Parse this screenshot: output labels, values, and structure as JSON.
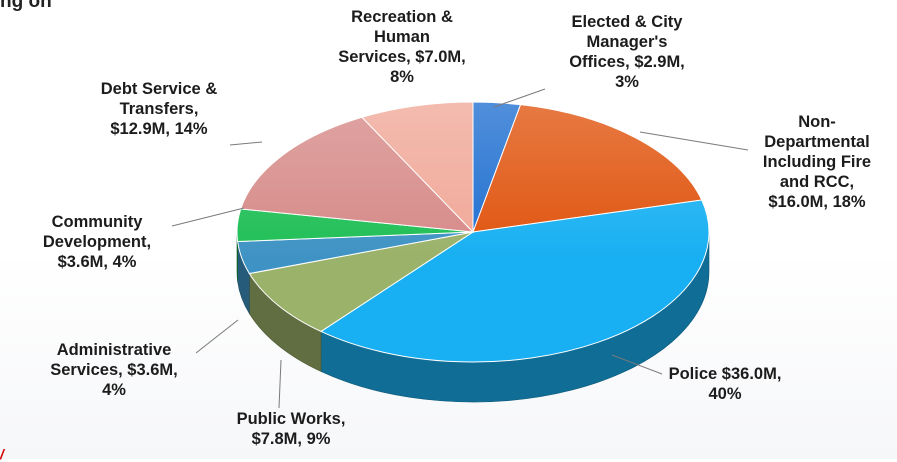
{
  "top_fragment": "ng on",
  "bottom_mark": "/",
  "chart_data": {
    "type": "pie",
    "title": "",
    "style": "3d",
    "slices": [
      {
        "name": "Elected & City Manager's Offices",
        "value": 2.9,
        "percent": 3,
        "label": "Elected & City\nManager's\nOffices, $2.9M,\n3%",
        "color": "#1f6fd0"
      },
      {
        "name": "Non-Departmental Including Fire and RCC",
        "value": 16.0,
        "percent": 18,
        "label": "Non-\nDepartmental\nIncluding Fire\nand RCC,\n$16.0M, 18%",
        "color": "#e0540e"
      },
      {
        "name": "Police",
        "value": 36.0,
        "percent": 40,
        "label": "Police   $36.0M,\n40%",
        "color": "#18b0f2"
      },
      {
        "name": "Public Works",
        "value": 7.8,
        "percent": 9,
        "label": "Public Works,\n$7.8M, 9%",
        "color": "#9bb26a"
      },
      {
        "name": "Administrative Services",
        "value": 3.6,
        "percent": 4,
        "label": "Administrative\nServices, $3.6M,\n4%",
        "color": "#3f93c4"
      },
      {
        "name": "Community Development",
        "value": 3.6,
        "percent": 4,
        "label": "Community\nDevelopment,\n$3.6M, 4%",
        "color": "#1fbf56"
      },
      {
        "name": "Debt Service & Transfers",
        "value": 12.9,
        "percent": 14,
        "label": "Debt Service &\nTransfers,\n$12.9M, 14%",
        "color": "#d68a88"
      },
      {
        "name": "Recreation & Human Services",
        "value": 7.0,
        "percent": 8,
        "label": "Recreation &\nHuman\nServices, $7.0M,\n8%",
        "color": "#f0a898"
      }
    ]
  }
}
